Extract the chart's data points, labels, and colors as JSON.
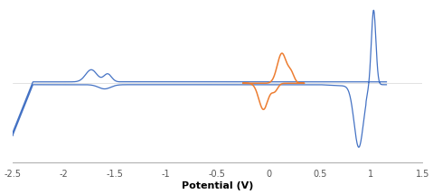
{
  "title": "",
  "xlabel": "Potential (V)",
  "ylabel": "",
  "xlim": [
    -2.5,
    1.5
  ],
  "ylim": [
    -0.85,
    0.85
  ],
  "xticks": [
    -2.5,
    -2.0,
    -1.5,
    -1.0,
    -0.5,
    0.0,
    0.5,
    1.0,
    1.5
  ],
  "blue_color": "#4472C4",
  "orange_color": "#ED7D31",
  "background_color": "#ffffff",
  "figsize": [
    4.79,
    2.15
  ],
  "dpi": 100
}
